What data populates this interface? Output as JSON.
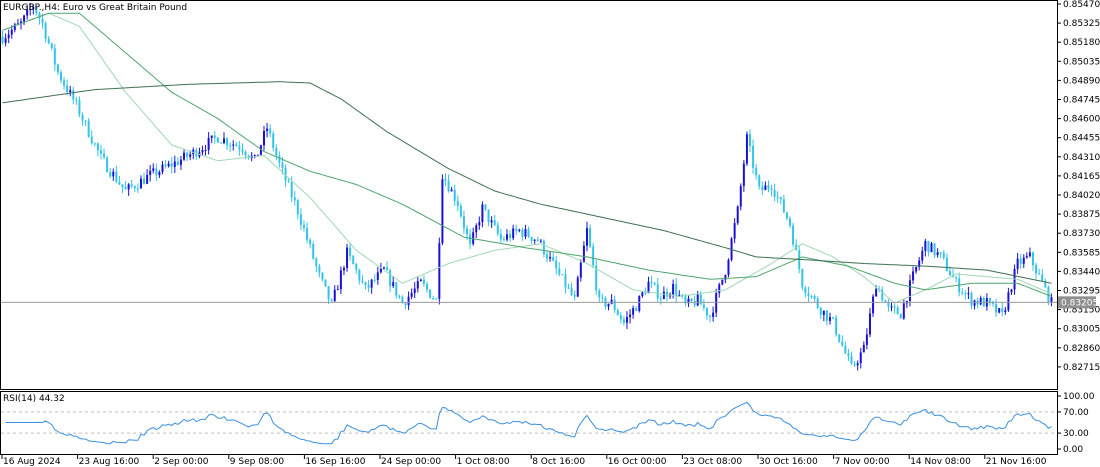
{
  "chart_data": [
    {
      "type": "candlestick",
      "symbol_title": "EURGBP.,H4:  Euro vs Great Britain Pound",
      "current_price_label": "0.83205",
      "current_price": 0.83205,
      "ylim": [
        0.8257,
        0.8547
      ],
      "y_ticks": [
        "0.85470",
        "0.85325",
        "0.85180",
        "0.85035",
        "0.84890",
        "0.84745",
        "0.84600",
        "0.84455",
        "0.84310",
        "0.84165",
        "0.84020",
        "0.83875",
        "0.83730",
        "0.83585",
        "0.83440",
        "0.83295",
        "0.83150",
        "0.83005",
        "0.82860",
        "0.82715"
      ],
      "x_ticks": [
        "16 Aug 2024",
        "23 Aug 16:00",
        "2 Sep 00:00",
        "9 Sep 08:00",
        "16 Sep 16:00",
        "24 Sep 00:00",
        "1 Oct 08:00",
        "8 Oct 16:00",
        "16 Oct 00:00",
        "23 Oct 08:00",
        "30 Oct 16:00",
        "7 Nov 00:00",
        "14 Nov 08:00",
        "21 Nov 16:00"
      ],
      "grid": false,
      "colors": {
        "bull": "#1a10d8",
        "bear": "#33c3ea",
        "ma_fast": "#9fd8b3",
        "ma_mid": "#4fa46e",
        "ma_slow": "#3f6f52",
        "price_line": "#9a9a9a",
        "price_box": "#8f8f8f"
      },
      "close_waypoints": [
        [
          0,
          0.8522
        ],
        [
          6,
          0.8532
        ],
        [
          10,
          0.8546
        ],
        [
          13,
          0.8532
        ],
        [
          18,
          0.8495
        ],
        [
          24,
          0.847
        ],
        [
          32,
          0.843
        ],
        [
          40,
          0.8405
        ],
        [
          48,
          0.8417
        ],
        [
          55,
          0.8425
        ],
        [
          62,
          0.8434
        ],
        [
          70,
          0.8446
        ],
        [
          78,
          0.8438
        ],
        [
          82,
          0.8428
        ],
        [
          86,
          0.8453
        ],
        [
          90,
          0.8425
        ],
        [
          96,
          0.839
        ],
        [
          103,
          0.834
        ],
        [
          107,
          0.8318
        ],
        [
          112,
          0.8358
        ],
        [
          118,
          0.833
        ],
        [
          124,
          0.8345
        ],
        [
          130,
          0.832
        ],
        [
          136,
          0.8335
        ],
        [
          141,
          0.8322
        ],
        [
          143,
          0.8418
        ],
        [
          148,
          0.8396
        ],
        [
          152,
          0.8362
        ],
        [
          156,
          0.8392
        ],
        [
          162,
          0.8368
        ],
        [
          168,
          0.8375
        ],
        [
          174,
          0.8368
        ],
        [
          180,
          0.8345
        ],
        [
          186,
          0.8322
        ],
        [
          190,
          0.8375
        ],
        [
          194,
          0.832
        ],
        [
          198,
          0.832
        ],
        [
          202,
          0.8305
        ],
        [
          206,
          0.8318
        ],
        [
          210,
          0.8335
        ],
        [
          214,
          0.8325
        ],
        [
          218,
          0.8332
        ],
        [
          222,
          0.8318
        ],
        [
          226,
          0.8322
        ],
        [
          230,
          0.831
        ],
        [
          235,
          0.8345
        ],
        [
          239,
          0.839
        ],
        [
          242,
          0.8445
        ],
        [
          246,
          0.8405
        ],
        [
          250,
          0.841
        ],
        [
          256,
          0.838
        ],
        [
          260,
          0.8335
        ],
        [
          265,
          0.8318
        ],
        [
          270,
          0.8305
        ],
        [
          276,
          0.827
        ],
        [
          280,
          0.8285
        ],
        [
          284,
          0.8335
        ],
        [
          288,
          0.8315
        ],
        [
          292,
          0.8312
        ],
        [
          296,
          0.834
        ],
        [
          300,
          0.8365
        ],
        [
          305,
          0.8355
        ],
        [
          310,
          0.8335
        ],
        [
          315,
          0.8322
        ],
        [
          320,
          0.832
        ],
        [
          325,
          0.831
        ],
        [
          330,
          0.835
        ],
        [
          334,
          0.8355
        ],
        [
          338,
          0.8335
        ],
        [
          341,
          0.832
        ]
      ],
      "ma_fast_waypoints": [
        [
          0,
          0.8527
        ],
        [
          15,
          0.854
        ],
        [
          25,
          0.853
        ],
        [
          40,
          0.848
        ],
        [
          55,
          0.844
        ],
        [
          70,
          0.8428
        ],
        [
          85,
          0.8432
        ],
        [
          100,
          0.84
        ],
        [
          115,
          0.836
        ],
        [
          130,
          0.8335
        ],
        [
          145,
          0.835
        ],
        [
          160,
          0.836
        ],
        [
          175,
          0.8365
        ],
        [
          190,
          0.835
        ],
        [
          205,
          0.833
        ],
        [
          220,
          0.8325
        ],
        [
          235,
          0.833
        ],
        [
          250,
          0.835
        ],
        [
          260,
          0.8365
        ],
        [
          270,
          0.8355
        ],
        [
          280,
          0.834
        ],
        [
          290,
          0.832
        ],
        [
          300,
          0.833
        ],
        [
          310,
          0.8342
        ],
        [
          320,
          0.834
        ],
        [
          330,
          0.8338
        ],
        [
          341,
          0.8327
        ]
      ],
      "ma_mid_waypoints": [
        [
          0,
          0.8527
        ],
        [
          15,
          0.854
        ],
        [
          25,
          0.854
        ],
        [
          40,
          0.851
        ],
        [
          55,
          0.848
        ],
        [
          70,
          0.846
        ],
        [
          85,
          0.8435
        ],
        [
          100,
          0.842
        ],
        [
          115,
          0.841
        ],
        [
          130,
          0.8395
        ],
        [
          150,
          0.837
        ],
        [
          170,
          0.8362
        ],
        [
          190,
          0.8355
        ],
        [
          210,
          0.8345
        ],
        [
          230,
          0.8338
        ],
        [
          245,
          0.834
        ],
        [
          260,
          0.8355
        ],
        [
          275,
          0.8348
        ],
        [
          290,
          0.8335
        ],
        [
          300,
          0.833
        ],
        [
          315,
          0.8335
        ],
        [
          330,
          0.8335
        ],
        [
          341,
          0.8325
        ]
      ],
      "ma_slow_waypoints": [
        [
          0,
          0.8472
        ],
        [
          30,
          0.8482
        ],
        [
          60,
          0.8486
        ],
        [
          90,
          0.8488
        ],
        [
          100,
          0.8487
        ],
        [
          110,
          0.8475
        ],
        [
          125,
          0.845
        ],
        [
          145,
          0.8422
        ],
        [
          160,
          0.8405
        ],
        [
          175,
          0.8395
        ],
        [
          195,
          0.8385
        ],
        [
          215,
          0.8375
        ],
        [
          235,
          0.8362
        ],
        [
          245,
          0.8355
        ],
        [
          260,
          0.8353
        ],
        [
          280,
          0.835
        ],
        [
          300,
          0.8348
        ],
        [
          320,
          0.8345
        ],
        [
          341,
          0.8335
        ]
      ],
      "n_bars": 342
    },
    {
      "type": "line",
      "title": "RSI(14) 44.32",
      "ylim": [
        0,
        100
      ],
      "y_ticks": [
        "100.00",
        "70.00",
        "30.00",
        "0.00"
      ],
      "levels": [
        70,
        30
      ],
      "color": "#3a8fe0",
      "last_value": 44.32
    }
  ]
}
